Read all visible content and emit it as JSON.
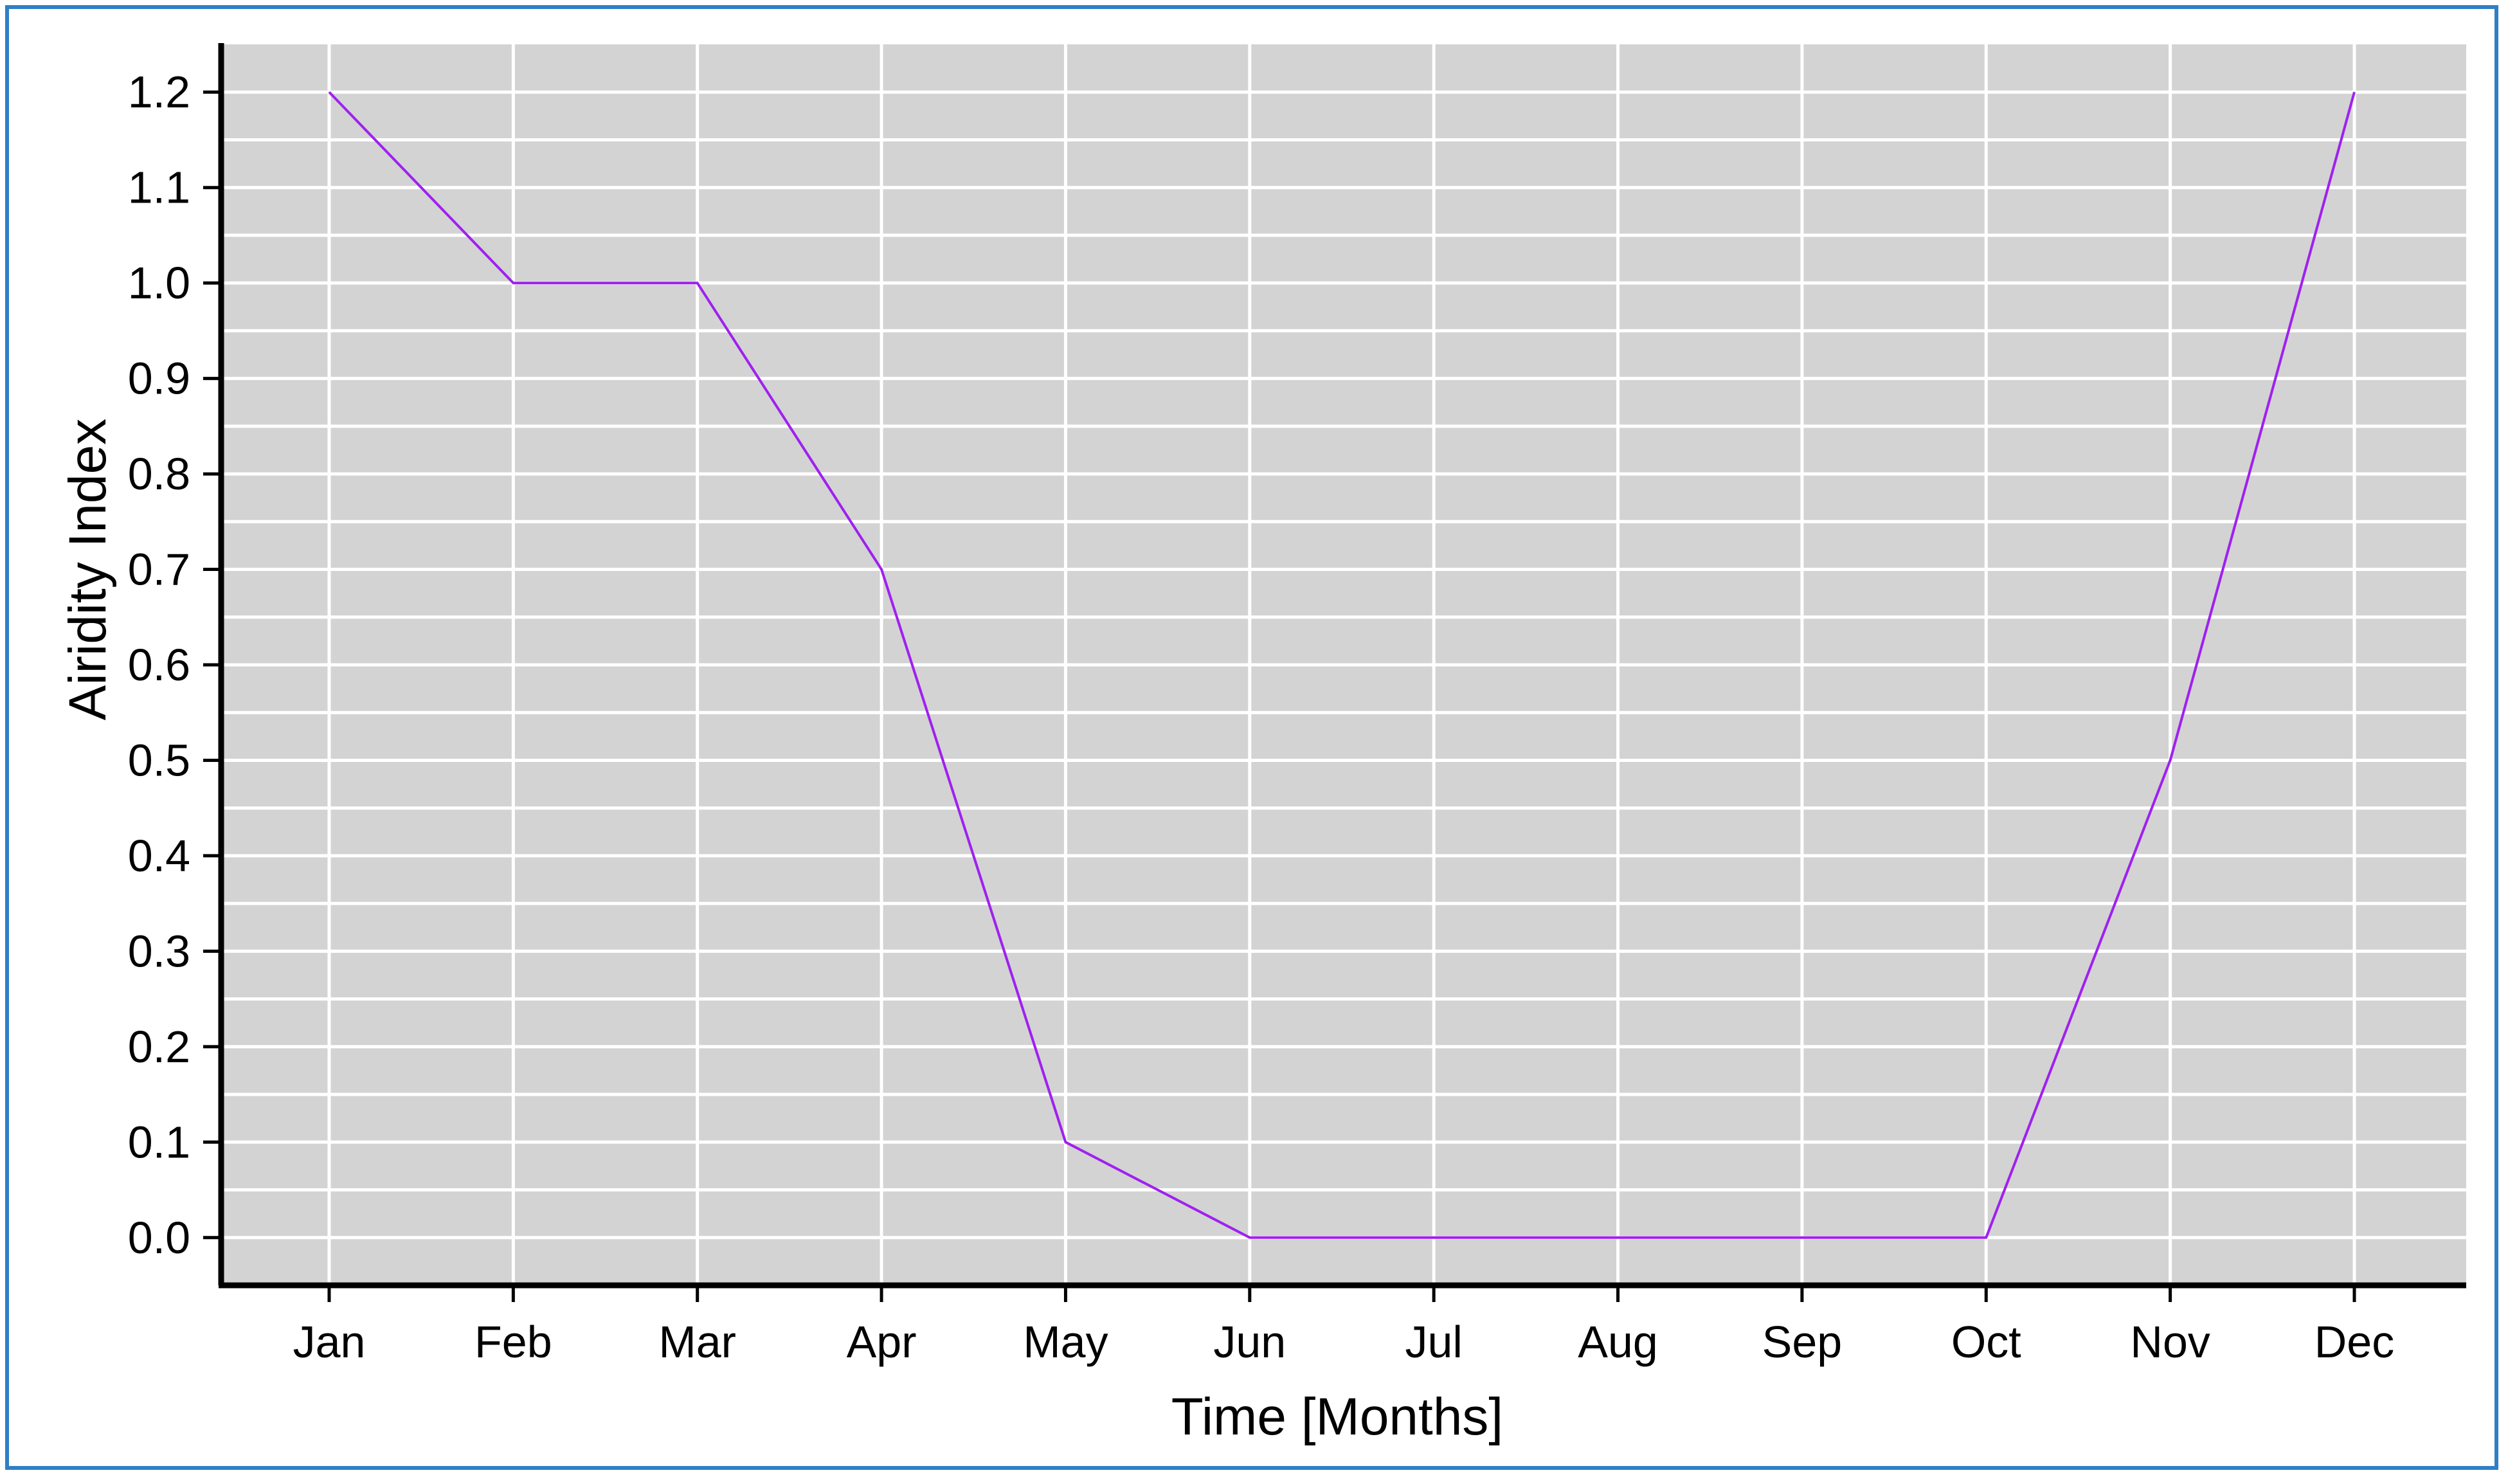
{
  "chart_data": {
    "type": "line",
    "categories": [
      "Jan",
      "Feb",
      "Mar",
      "Apr",
      "May",
      "Jun",
      "Jul",
      "Aug",
      "Sep",
      "Oct",
      "Nov",
      "Dec"
    ],
    "series": [
      {
        "values": [
          1.2,
          1.0,
          1.0,
          0.7,
          0.1,
          0.0,
          0.0,
          0.0,
          0.0,
          0.0,
          0.5,
          1.2
        ]
      }
    ],
    "xlabel": "Time [Months]",
    "ylabel": "Airidity Index",
    "ylim": [
      -0.05,
      1.25
    ],
    "y_ticks": [
      "0.0",
      "0.1",
      "0.2",
      "0.3",
      "0.4",
      "0.5",
      "0.6",
      "0.7",
      "0.8",
      "0.9",
      "1.0",
      "1.1",
      "1.2"
    ],
    "grid": true,
    "minor_y_grid": true,
    "colors": {
      "plot_background": "#d3d3d3",
      "grid": "#ffffff",
      "line": "#a020f0",
      "frame_border": "#2f7fc4"
    }
  }
}
